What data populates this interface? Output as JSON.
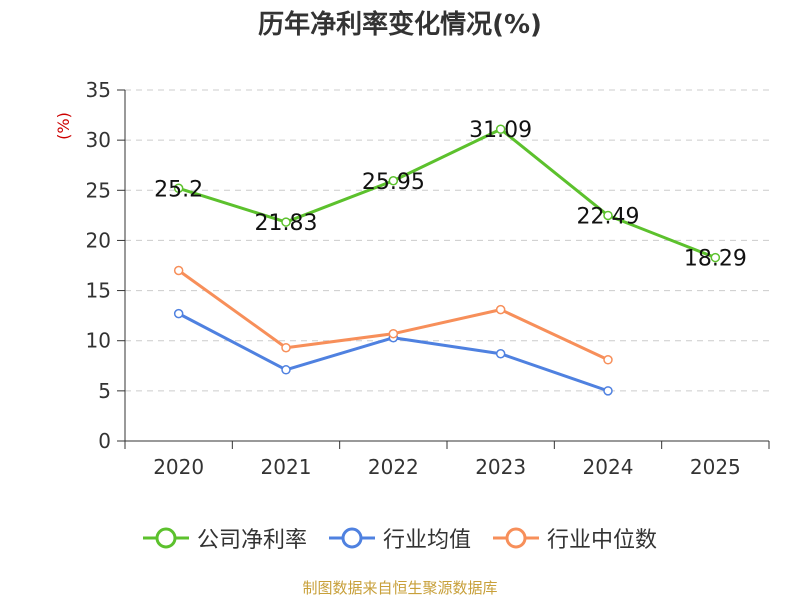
{
  "chart_data": {
    "type": "line",
    "title": "历年净利率变化情况(%)",
    "ylabel": "(%)",
    "xlabel": "",
    "categories": [
      "2020",
      "2021",
      "2022",
      "2023",
      "2024",
      "2025"
    ],
    "ylim": [
      0,
      35
    ],
    "yticks": [
      0,
      5,
      10,
      15,
      20,
      25,
      30,
      35
    ],
    "grid": "horizontal dashed",
    "legend_position": "bottom",
    "series": [
      {
        "name": "公司净利率",
        "color": "#5cc12d",
        "values": [
          25.2,
          21.83,
          25.95,
          31.09,
          22.49,
          18.29
        ],
        "labels": [
          "25.2",
          "21.83",
          "25.95",
          "31.09",
          "22.49",
          "18.29"
        ]
      },
      {
        "name": "行业均值",
        "color": "#4f81e0",
        "values": [
          12.7,
          7.1,
          10.3,
          8.7,
          5.0,
          null
        ]
      },
      {
        "name": "行业中位数",
        "color": "#f78f5a",
        "values": [
          17.0,
          9.3,
          10.7,
          13.1,
          8.1,
          null
        ]
      }
    ]
  },
  "colors": {
    "axis": "#333333",
    "grid": "#cccccc",
    "ylabel": "#cc0000",
    "source": "#c8a03a"
  },
  "source": "制图数据来自恒生聚源数据库"
}
